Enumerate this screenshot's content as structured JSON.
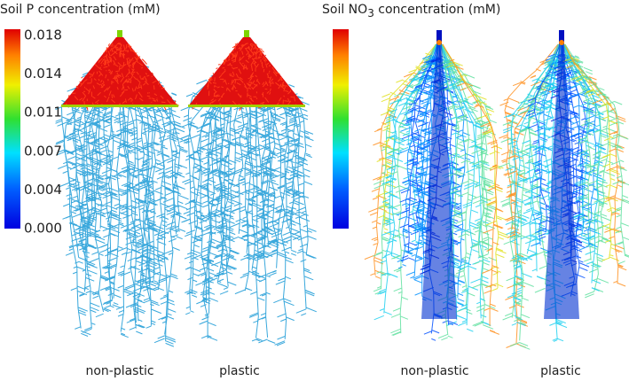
{
  "left_panel": {
    "title": "Soil P concentration (mM)",
    "colorbar_ticks": [
      "0.018",
      "0.014",
      "0.011",
      "0.007",
      "0.004",
      "0.000"
    ],
    "labels": [
      "non-plastic",
      "plastic"
    ]
  },
  "right_panel": {
    "title_prefix": "Soil NO",
    "title_subscript": "3",
    "title_suffix": " concentration (mM)",
    "labels": [
      "non-plastic",
      "plastic"
    ]
  }
}
